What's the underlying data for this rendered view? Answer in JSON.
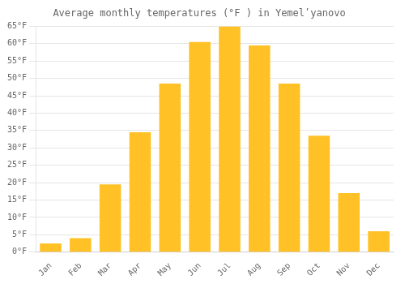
{
  "chart_data": {
    "type": "bar",
    "title": "Average monthly temperatures (°F ) in Yemelʹyanovo",
    "categories": [
      "Jan",
      "Feb",
      "Mar",
      "Apr",
      "May",
      "Jun",
      "Jul",
      "Aug",
      "Sep",
      "Oct",
      "Nov",
      "Dec"
    ],
    "values": [
      2.5,
      4.0,
      19.5,
      34.5,
      48.5,
      60.5,
      65.0,
      59.5,
      48.5,
      33.5,
      17.0,
      6.0
    ],
    "color": "#FFC125",
    "ylim": [
      0,
      65
    ],
    "yticks": [
      {
        "value": 0,
        "label": "0°F"
      },
      {
        "value": 5,
        "label": "5°F"
      },
      {
        "value": 10,
        "label": "10°F"
      },
      {
        "value": 15,
        "label": "15°F"
      },
      {
        "value": 20,
        "label": "20°F"
      },
      {
        "value": 25,
        "label": "25°F"
      },
      {
        "value": 30,
        "label": "30°F"
      },
      {
        "value": 35,
        "label": "35°F"
      },
      {
        "value": 40,
        "label": "40°F"
      },
      {
        "value": 45,
        "label": "45°F"
      },
      {
        "value": 50,
        "label": "50°F"
      },
      {
        "value": 55,
        "label": "55°F"
      },
      {
        "value": 60,
        "label": "60°F"
      },
      {
        "value": 65,
        "label": "65°F"
      }
    ],
    "grid": true
  }
}
